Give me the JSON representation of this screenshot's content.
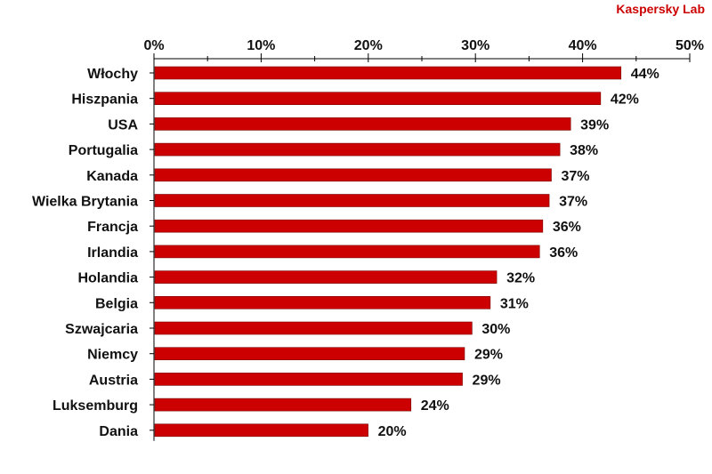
{
  "brand": {
    "text": "Kaspersky Lab",
    "color": "#cc0000"
  },
  "chart_data": {
    "type": "bar",
    "orientation": "horizontal",
    "categories": [
      "Włochy",
      "Hiszpania",
      "USA",
      "Portugalia",
      "Kanada",
      "Wielka Brytania",
      "Francja",
      "Irlandia",
      "Holandia",
      "Belgia",
      "Szwajcaria",
      "Niemcy",
      "Austria",
      "Luksemburg",
      "Dania"
    ],
    "values": [
      43.5,
      41.6,
      38.8,
      37.8,
      37.0,
      36.8,
      36.2,
      35.9,
      31.9,
      31.3,
      29.6,
      28.9,
      28.7,
      23.9,
      19.9
    ],
    "value_labels": [
      "44%",
      "42%",
      "39%",
      "38%",
      "37%",
      "37%",
      "36%",
      "36%",
      "32%",
      "31%",
      "30%",
      "29%",
      "29%",
      "24%",
      "20%"
    ],
    "xlim": [
      0,
      50
    ],
    "ticks": [
      0,
      10,
      20,
      30,
      40,
      50
    ],
    "tick_labels": [
      "0%",
      "10%",
      "20%",
      "30%",
      "40%",
      "50%"
    ],
    "axis_position": "top",
    "bar_color": "#cc0000",
    "grid": false
  }
}
